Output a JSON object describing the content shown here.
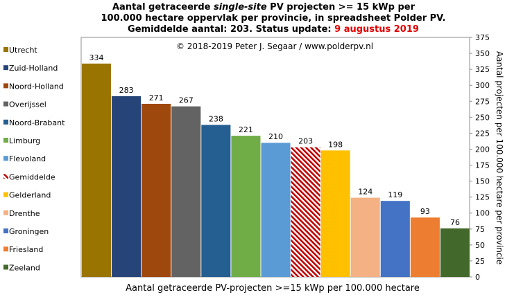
{
  "title": {
    "line1_pre": "Aantal getraceerde ",
    "line1_em": "single-site",
    "line1_post": " PV projecten >= 15 kWp per",
    "line2": "100.000 hectare oppervlak per provincie, in spreadsheet Polder PV.",
    "line3_pre": "Gemiddelde aantal: 203. Status update: ",
    "line3_date": "9 augustus 2019"
  },
  "copyright": "© 2018-2019  Peter J. Segaar / www.polderpv.nl",
  "chart_data": {
    "type": "bar",
    "categories": [
      "Utrecht",
      "Zuid-Holland",
      "Noord-Holland",
      "Overijssel",
      "Noord-Brabant",
      "Limburg",
      "Flevoland",
      "Gemiddelde",
      "Gelderland",
      "Drenthe",
      "Groningen",
      "Friesland",
      "Zeeland"
    ],
    "values": [
      334,
      283,
      271,
      267,
      238,
      221,
      210,
      203,
      198,
      124,
      119,
      93,
      76
    ],
    "colors": [
      "#9a7400",
      "#264478",
      "#9e480e",
      "#636363",
      "#255e91",
      "#70ad47",
      "#5b9bd5",
      "hatch-red",
      "#ffc000",
      "#f4b183",
      "#4472c4",
      "#ed7d31",
      "#43682b"
    ],
    "xlabel": "Aantal getraceerde PV-projecten >=15 kWp per 100.000 hectare",
    "ylabel": "Aantal projecten per 100.000 hectare per provincie",
    "ylim": [
      0,
      375
    ],
    "yticks": [
      0,
      25,
      50,
      75,
      100,
      125,
      150,
      175,
      200,
      225,
      250,
      275,
      300,
      325,
      350,
      375
    ],
    "legend_position": "left",
    "grid": false
  }
}
